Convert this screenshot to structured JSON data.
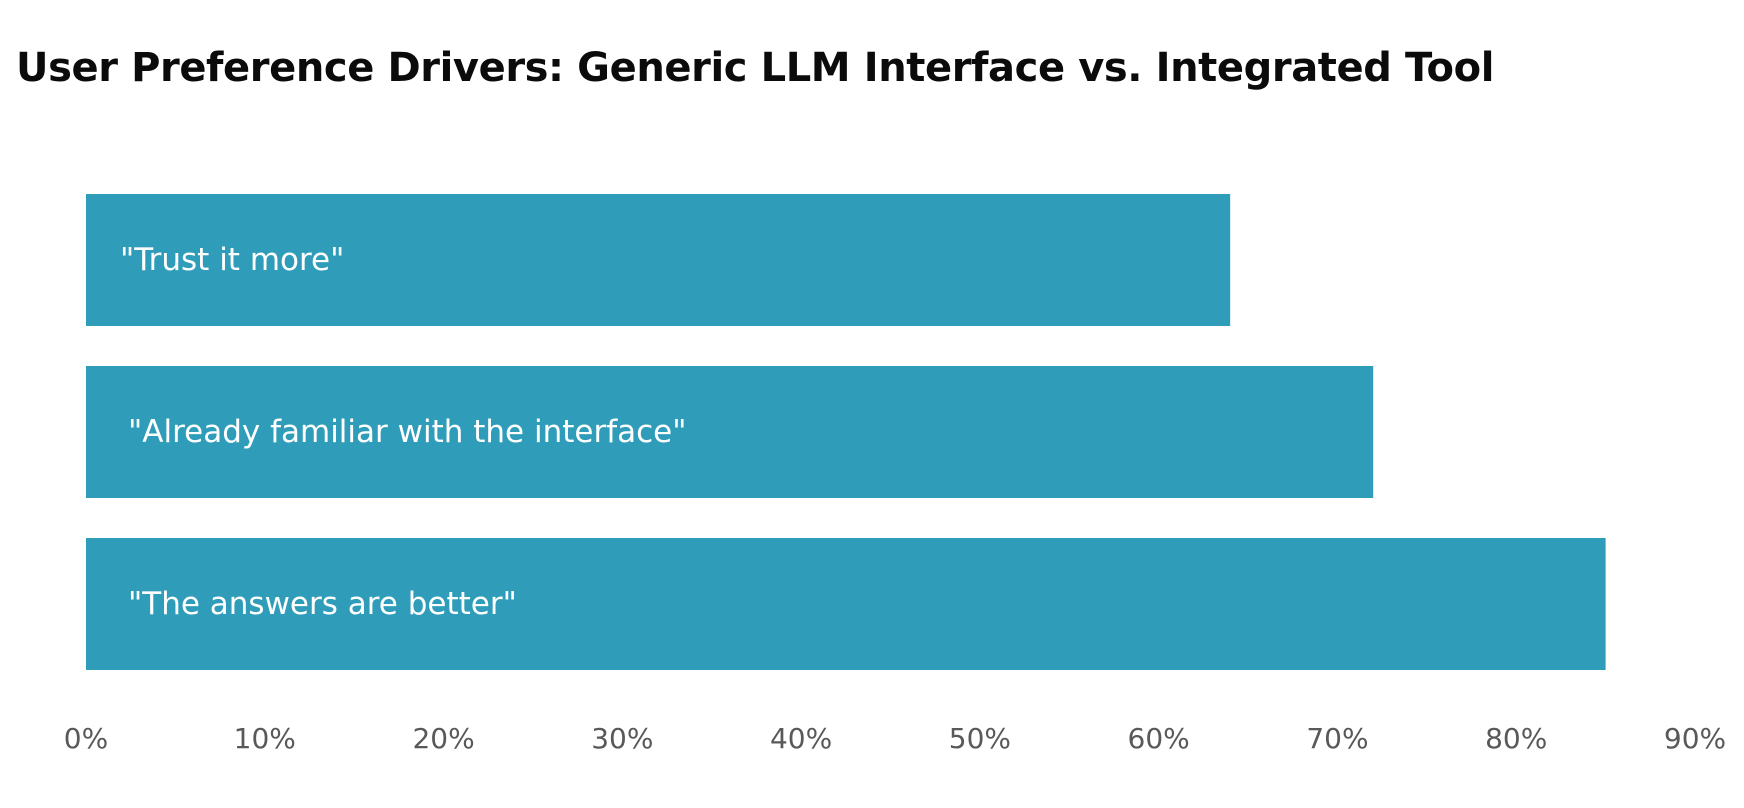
{
  "accent_color": "#2f9db9",
  "tick_color": "#595959",
  "chart_data": {
    "type": "bar",
    "orientation": "horizontal",
    "title": "User Preference Drivers: Generic LLM Interface vs. Integrated Tool",
    "categories": [
      "\"Trust it more\"",
      "\"Already familiar with the interface\"",
      "\"The answers are better\""
    ],
    "values": [
      64,
      72,
      85
    ],
    "value_unit": "%",
    "xlim": [
      0,
      90
    ],
    "x_ticks": [
      "0%",
      "10%",
      "20%",
      "30%",
      "40%",
      "50%",
      "60%",
      "70%",
      "80%",
      "90%"
    ],
    "xlabel": "",
    "ylabel": "",
    "grid": false,
    "legend": "none"
  }
}
